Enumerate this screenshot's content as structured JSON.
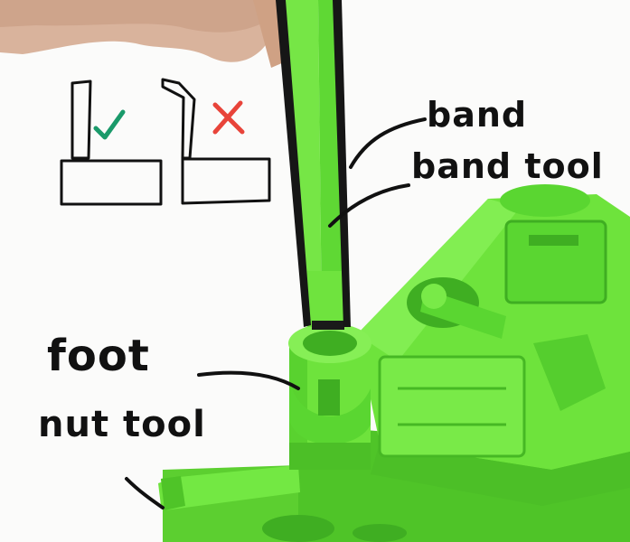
{
  "annotations": {
    "band": "band",
    "band_tool": "band tool",
    "foot": "foot",
    "nut_tool": "nut tool"
  },
  "colors": {
    "background": "#fbfbfa",
    "plastic": "#6ee33c",
    "plastic_shadow": "#3fae22",
    "band": "#161616",
    "ink": "#111111",
    "check": "#1a9a6a",
    "cross": "#e8443a",
    "skin": "#d9b39c"
  },
  "icons": {
    "correct": "check-mark-icon",
    "incorrect": "cross-mark-icon"
  }
}
